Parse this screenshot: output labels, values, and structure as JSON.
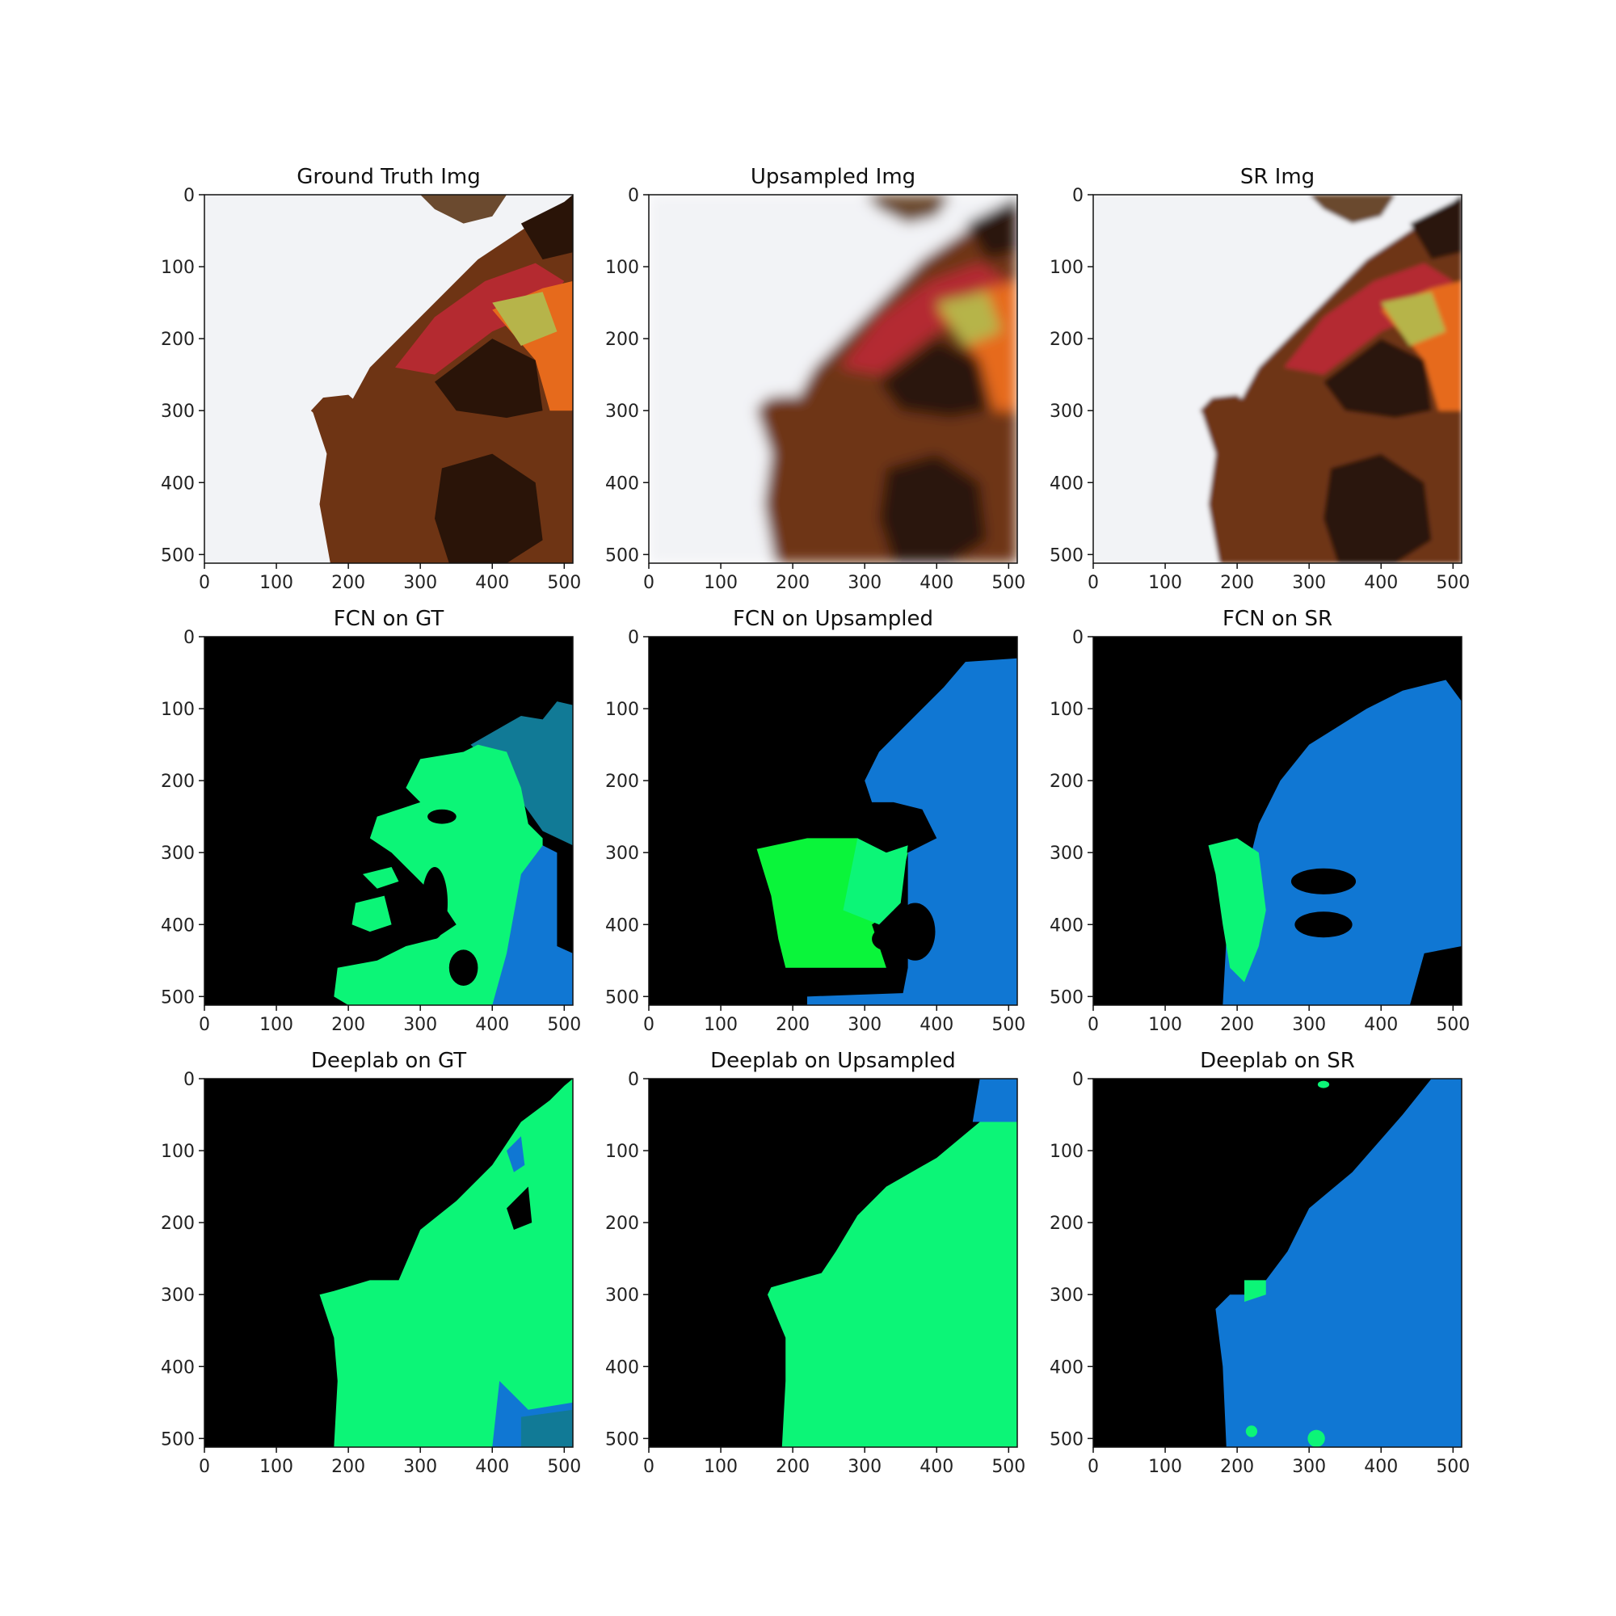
{
  "panels": [
    {
      "title": "Ground Truth Img",
      "kind": "photo",
      "blur": 0
    },
    {
      "title": "Upsampled Img",
      "kind": "photo",
      "blur": 9
    },
    {
      "title": "SR Img",
      "kind": "photo",
      "blur": 3
    },
    {
      "title": "FCN on GT",
      "kind": "fcn_gt"
    },
    {
      "title": "FCN on Upsampled",
      "kind": "fcn_up"
    },
    {
      "title": "FCN on SR",
      "kind": "fcn_sr"
    },
    {
      "title": "Deeplab on GT",
      "kind": "dl_gt"
    },
    {
      "title": "Deeplab on Upsampled",
      "kind": "dl_up"
    },
    {
      "title": "Deeplab on SR",
      "kind": "dl_sr"
    }
  ],
  "axis": {
    "range": [
      0,
      512
    ],
    "x_ticks": [
      0,
      100,
      200,
      300,
      400,
      500
    ],
    "y_ticks": [
      0,
      100,
      200,
      300,
      400,
      500
    ]
  },
  "colors": {
    "background": "#000000",
    "green": "#0cf577",
    "bright_green": "#0af53a",
    "blue": "#1077d3",
    "teal": "#117a96",
    "snow": "#f2f3f6",
    "dog_brown": "#6e3414",
    "scarf_red": "#b42a30",
    "scarf_orange": "#e66a1c",
    "scarf_yellow": "#b6b44a",
    "dark": "#2a1408"
  }
}
